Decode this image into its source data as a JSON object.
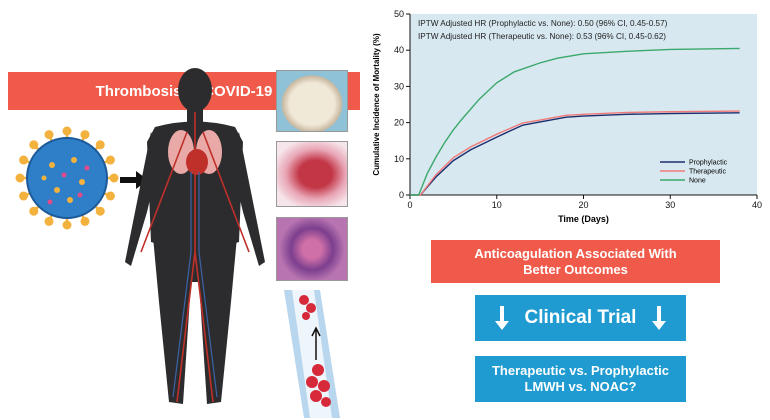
{
  "left": {
    "title": "Thrombosis in COVID-19"
  },
  "right": {
    "finding": "Anticoagulation Associated With Better Outcomes",
    "trial": "Clinical Trial",
    "question_line1": "Therapeutic vs. Prophylactic",
    "question_line2": "LMWH vs. NOAC?"
  },
  "colors": {
    "red": "#f05a4a",
    "blue": "#1f9bd1",
    "plot_bg": "#d8e8f1"
  },
  "chart_data": {
    "type": "line",
    "xlabel": "Time (Days)",
    "ylabel": "Cumulative Incidence of Mortality (%)",
    "xlim": [
      0,
      40
    ],
    "ylim": [
      0,
      50
    ],
    "xticks": [
      0,
      10,
      20,
      30,
      40
    ],
    "yticks": [
      0,
      10,
      20,
      30,
      40,
      50
    ],
    "annotations": [
      "IPTW Adjusted HR (Prophylactic vs. None): 0.50 (96% CI, 0.45-0.57)",
      "IPTW Adjusted HR (Therapeutic vs. None): 0.53 (96% CI, 0.45-0.62)"
    ],
    "legend_position": "bottom-right",
    "series": [
      {
        "name": "Prophylactic",
        "color": "#1b2f6e",
        "x": [
          0,
          1.2,
          3,
          5,
          7,
          10,
          13,
          15,
          18,
          20,
          25,
          30,
          38
        ],
        "y": [
          0,
          0,
          5,
          9.5,
          12.5,
          16,
          19.3,
          20.2,
          21.5,
          21.8,
          22.3,
          22.5,
          22.7
        ]
      },
      {
        "name": "Therapeutic",
        "color": "#f07a78",
        "x": [
          0,
          1.2,
          3,
          5,
          7,
          10,
          13,
          15,
          18,
          20,
          25,
          30,
          38
        ],
        "y": [
          0,
          0,
          5.6,
          10.3,
          13.3,
          16.8,
          19.9,
          20.7,
          22,
          22.3,
          22.8,
          23,
          23.2
        ]
      },
      {
        "name": "None",
        "color": "#3aa86b",
        "x": [
          0,
          1,
          2,
          3,
          4,
          5,
          6,
          8,
          10,
          12,
          15,
          17,
          20,
          25,
          30,
          38
        ],
        "y": [
          0,
          0,
          6,
          10.5,
          14.5,
          18,
          21,
          26.5,
          31,
          34,
          36.5,
          37.8,
          39,
          39.7,
          40.2,
          40.5
        ]
      }
    ]
  }
}
